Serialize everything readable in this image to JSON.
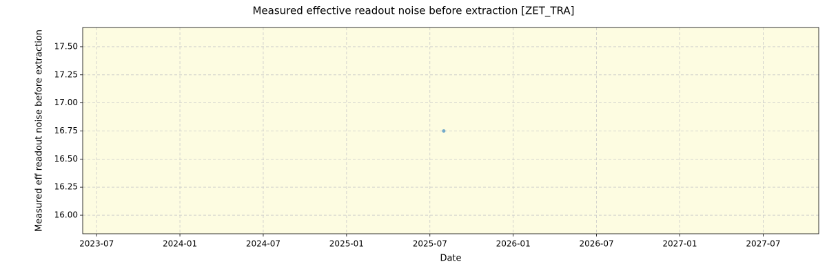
{
  "chart_data": {
    "type": "scatter",
    "title": "Measured effective readout noise before extraction [ZET_TRA]",
    "x_label": "Date",
    "y_label": "Measured eff readout noise before extraction",
    "series": [
      {
        "name": "ZET_TRA",
        "color": "#5a9bc6",
        "x": [
          "2025-08"
        ],
        "values": [
          16.75
        ]
      }
    ],
    "xlim": [
      "2023-06",
      "2027-11"
    ],
    "xticks": [
      "2023-07",
      "2024-01",
      "2024-07",
      "2025-01",
      "2025-07",
      "2026-01",
      "2026-07",
      "2027-01",
      "2027-07"
    ],
    "ylim": [
      15.835,
      17.671
    ],
    "yticks": [
      {
        "value": 16,
        "label": "16.00"
      },
      {
        "value": 16.25,
        "label": "16.25"
      },
      {
        "value": 16.5,
        "label": "16.50"
      },
      {
        "value": 16.75,
        "label": "16.75"
      },
      {
        "value": 17,
        "label": "17.00"
      },
      {
        "value": 17.25,
        "label": "17.25"
      },
      {
        "value": 17.5,
        "label": "17.50"
      }
    ],
    "grid": true,
    "background": "#fdfce1"
  }
}
